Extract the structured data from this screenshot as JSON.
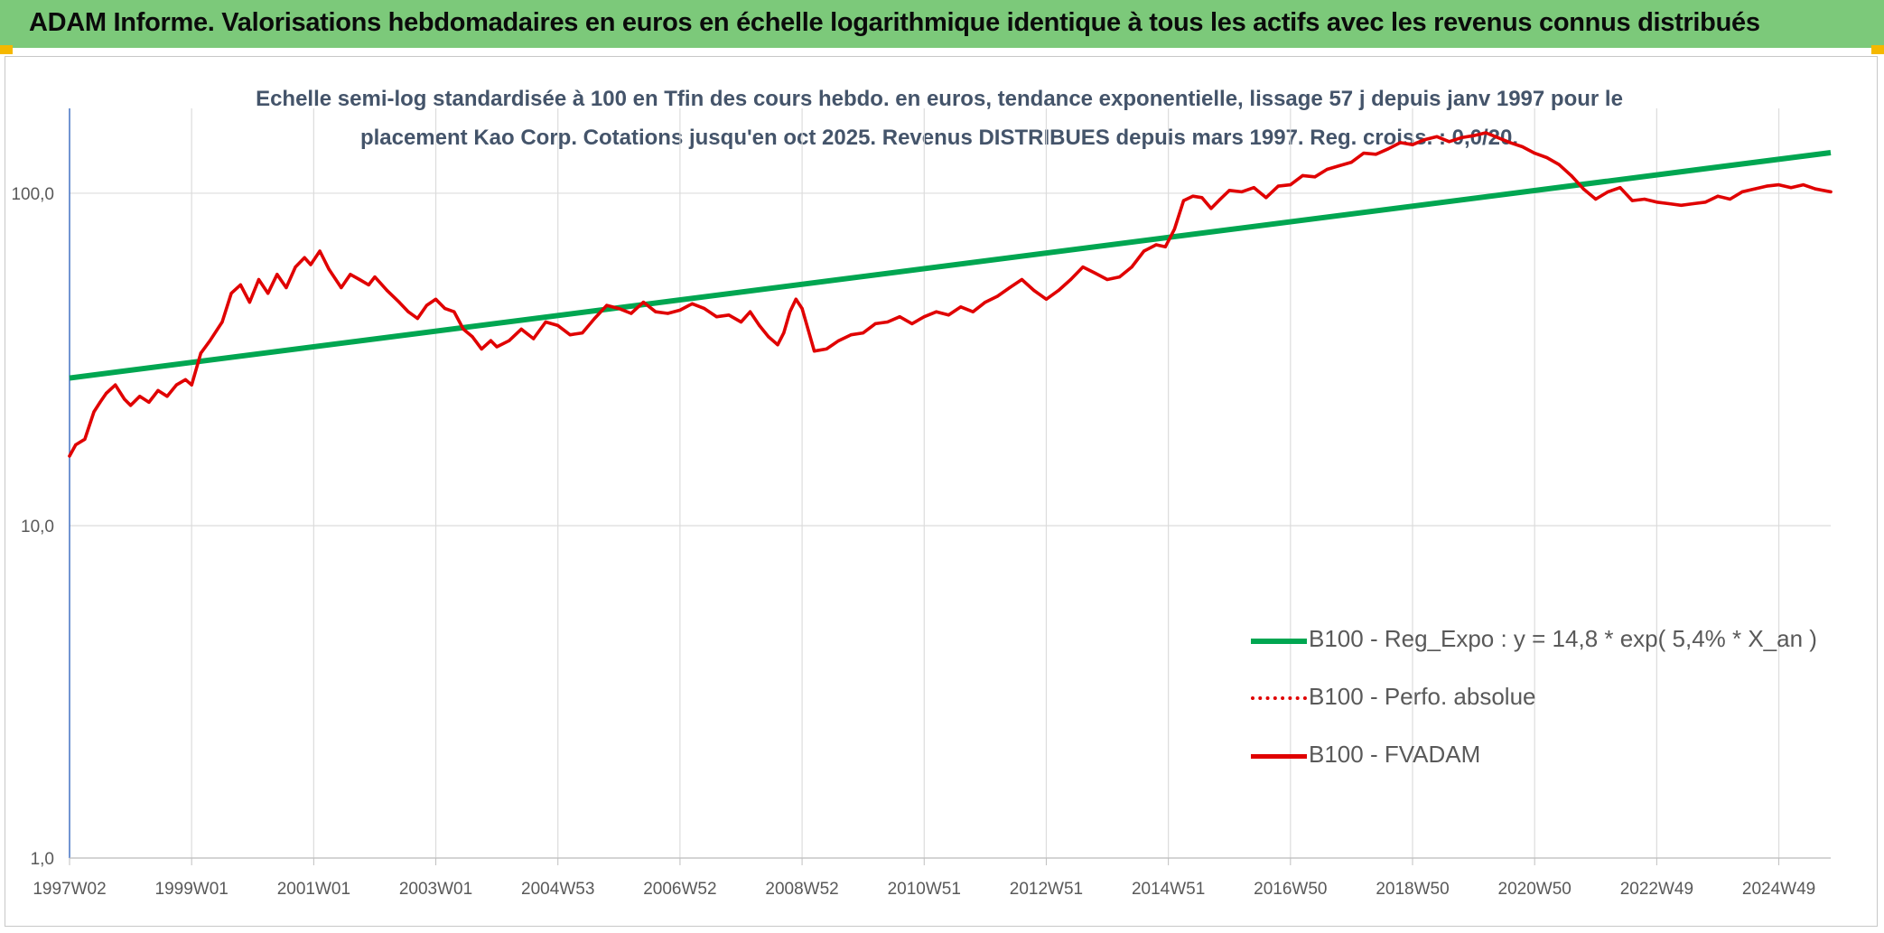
{
  "header": {
    "title": "ADAM Informe. Valorisations hebdomadaires en euros en échelle logarithmique identique à tous les actifs avec les revenus connus distribués"
  },
  "colors": {
    "banner": "#7cc97a",
    "trend": "#00a651",
    "series": "#e00000"
  },
  "chart_data": {
    "type": "line",
    "title_lines": [
      "Echelle semi-log standardisée à 100 en Tfin des cours hebdo. en euros, tendance exponentielle, lissage 57 j depuis janv 1997 pour le",
      "placement Kao Corp. Cotations jusqu'en oct 2025. Revenus DISTRIBUES depuis mars 1997. Reg. croiss. : 0,0/20."
    ],
    "y_scale": "log",
    "ylim": [
      1,
      180
    ],
    "xlim": [
      1997.0,
      2025.85
    ],
    "y_ticks": [
      {
        "value": 100,
        "label": "100,0"
      },
      {
        "value": 10,
        "label": "10,0"
      },
      {
        "value": 1,
        "label": "1,0"
      }
    ],
    "x_ticks": [
      {
        "value": 1997.0,
        "label": "1997W02"
      },
      {
        "value": 1999.0,
        "label": "1999W01"
      },
      {
        "value": 2001.0,
        "label": "2001W01"
      },
      {
        "value": 2003.0,
        "label": "2003W01"
      },
      {
        "value": 2005.0,
        "label": "2004W53"
      },
      {
        "value": 2007.0,
        "label": "2006W52"
      },
      {
        "value": 2009.0,
        "label": "2008W52"
      },
      {
        "value": 2011.0,
        "label": "2010W51"
      },
      {
        "value": 2013.0,
        "label": "2012W51"
      },
      {
        "value": 2015.0,
        "label": "2014W51"
      },
      {
        "value": 2017.0,
        "label": "2016W50"
      },
      {
        "value": 2019.0,
        "label": "2018W50"
      },
      {
        "value": 2021.0,
        "label": "2020W50"
      },
      {
        "value": 2023.0,
        "label": "2022W49"
      },
      {
        "value": 2025.0,
        "label": "2024W49"
      }
    ],
    "series": [
      {
        "name": "B100 - Reg_Expo : y = 14,8 * exp( 5,4% *  X_an )",
        "style": "solid-thick",
        "color": "#00a651",
        "x": [
          1997.0,
          2025.85
        ],
        "y": [
          27.8,
          132.5
        ]
      },
      {
        "name": "B100 - Perfo. absolue",
        "style": "dotted",
        "color": "#e00000",
        "x": [],
        "y": []
      },
      {
        "name": "B100 - FVADAM",
        "style": "solid",
        "color": "#e00000",
        "x": [
          1997.0,
          1997.1,
          1997.25,
          1997.4,
          1997.5,
          1997.6,
          1997.75,
          1997.9,
          1998.0,
          1998.15,
          1998.3,
          1998.45,
          1998.6,
          1998.75,
          1998.9,
          1999.0,
          1999.15,
          1999.3,
          1999.5,
          1999.65,
          1999.8,
          1999.95,
          2000.1,
          2000.25,
          2000.4,
          2000.55,
          2000.7,
          2000.85,
          2000.95,
          2001.1,
          2001.25,
          2001.45,
          2001.6,
          2001.75,
          2001.9,
          2002.0,
          2002.2,
          2002.4,
          2002.55,
          2002.7,
          2002.85,
          2003.0,
          2003.15,
          2003.3,
          2003.45,
          2003.6,
          2003.75,
          2003.9,
          2004.0,
          2004.2,
          2004.4,
          2004.6,
          2004.8,
          2005.0,
          2005.2,
          2005.4,
          2005.6,
          2005.8,
          2006.0,
          2006.2,
          2006.4,
          2006.6,
          2006.8,
          2007.0,
          2007.2,
          2007.4,
          2007.6,
          2007.8,
          2008.0,
          2008.15,
          2008.3,
          2008.45,
          2008.6,
          2008.7,
          2008.8,
          2008.9,
          2009.0,
          2009.2,
          2009.4,
          2009.6,
          2009.8,
          2010.0,
          2010.2,
          2010.4,
          2010.6,
          2010.8,
          2011.0,
          2011.2,
          2011.4,
          2011.6,
          2011.8,
          2012.0,
          2012.2,
          2012.4,
          2012.6,
          2012.8,
          2013.0,
          2013.2,
          2013.4,
          2013.6,
          2013.8,
          2014.0,
          2014.2,
          2014.4,
          2014.6,
          2014.8,
          2014.95,
          2015.1,
          2015.25,
          2015.4,
          2015.55,
          2015.7,
          2015.85,
          2016.0,
          2016.2,
          2016.4,
          2016.6,
          2016.8,
          2017.0,
          2017.2,
          2017.4,
          2017.6,
          2017.8,
          2018.0,
          2018.2,
          2018.4,
          2018.6,
          2018.8,
          2019.0,
          2019.2,
          2019.4,
          2019.6,
          2019.8,
          2020.0,
          2020.2,
          2020.4,
          2020.6,
          2020.8,
          2021.0,
          2021.2,
          2021.4,
          2021.6,
          2021.8,
          2022.0,
          2022.2,
          2022.4,
          2022.6,
          2022.8,
          2023.0,
          2023.2,
          2023.4,
          2023.6,
          2023.8,
          2024.0,
          2024.2,
          2024.4,
          2024.6,
          2024.8,
          2025.0,
          2025.2,
          2025.4,
          2025.6,
          2025.85
        ],
        "y": [
          16.2,
          17.5,
          18.2,
          22,
          23.5,
          25,
          26.5,
          24,
          23,
          24.5,
          23.5,
          25.5,
          24.5,
          26.5,
          27.5,
          26.5,
          33,
          36,
          41,
          50,
          53,
          47,
          55,
          50,
          57,
          52,
          60,
          64,
          61,
          67,
          59,
          52,
          57,
          55,
          53,
          56,
          51,
          47,
          44,
          42,
          46,
          48,
          45,
          44,
          39,
          37,
          34,
          36,
          34.5,
          36,
          39,
          36.5,
          41,
          40,
          37.5,
          38,
          42,
          46,
          45,
          43.5,
          47,
          44,
          43.5,
          44.5,
          46.5,
          45,
          42.5,
          43,
          41,
          44,
          40,
          37,
          35,
          38,
          44,
          48,
          45,
          33.5,
          34,
          36,
          37.5,
          38,
          40.5,
          41,
          42.5,
          40.5,
          42.5,
          44,
          43,
          45.5,
          44,
          47,
          49,
          52,
          55,
          51,
          48,
          51,
          55,
          60,
          57.5,
          55,
          56,
          60,
          67,
          70,
          69,
          78,
          95,
          98,
          97,
          90,
          96,
          102,
          101,
          104,
          97,
          105,
          106,
          113,
          112,
          118,
          121,
          124,
          132,
          131,
          136,
          142,
          140,
          145,
          148,
          143,
          147,
          149,
          152,
          147,
          142,
          138,
          132,
          128,
          122,
          113,
          103,
          96,
          101,
          104,
          95,
          96,
          94,
          93,
          92,
          93,
          94,
          98,
          96,
          101,
          103,
          105,
          106,
          104,
          106,
          103,
          101
        ]
      }
    ],
    "legend_position": "bottom-right"
  }
}
